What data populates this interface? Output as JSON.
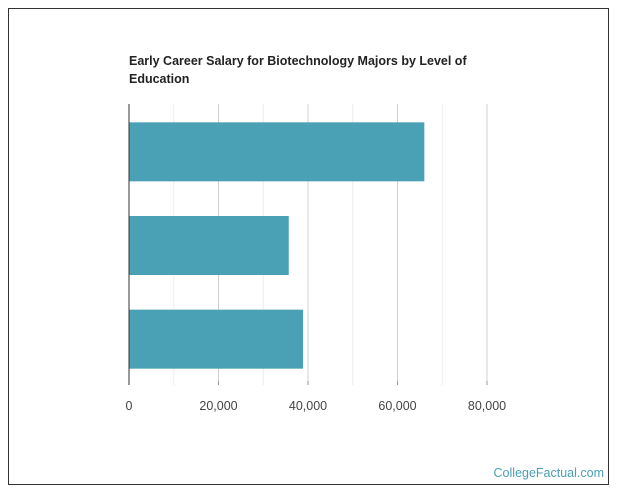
{
  "chart_data": {
    "type": "bar",
    "orientation": "horizontal",
    "title": "Early Career Salary for Biotechnology Majors by Level of Education",
    "categories": [
      "",
      "",
      ""
    ],
    "values": [
      66000,
      35700,
      38900
    ],
    "xlim": [
      0,
      90000
    ],
    "ticks": [
      0,
      20000,
      40000,
      60000,
      80000
    ],
    "tick_labels": [
      "0",
      "20,000",
      "40,000",
      "60,000",
      "80,000"
    ],
    "grid": true,
    "bar_color": "#4aa0b5"
  },
  "footer": {
    "credit": "CollegeFactual.com"
  }
}
